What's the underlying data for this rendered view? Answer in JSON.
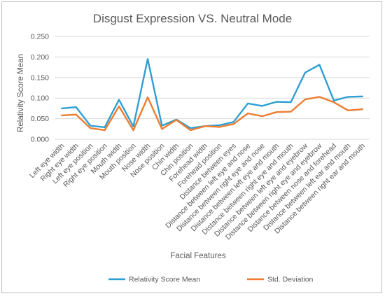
{
  "chart_data": {
    "type": "line",
    "title": "Disgust Expression VS. Neutral Mode",
    "xlabel": "Facial Features",
    "ylabel": "Relativity Score Mean",
    "ylim": [
      0,
      0.25
    ],
    "yticks": [
      "0.000",
      "0.050",
      "0.100",
      "0.150",
      "0.200",
      "0.250"
    ],
    "grid": true,
    "legend_position": "bottom",
    "categories": [
      "Left eye width",
      "Right eye width",
      "Left eye position",
      "Right eye position",
      "Mouth width",
      "Mouth position",
      "Nose width",
      "Nose position",
      "Chin width",
      "Chin position",
      "Forehead width",
      "Forehead position",
      "Distance between eyes",
      "Distance between left eye and nose",
      "Distance between right eye and nose",
      "Distance between left eye and mouth",
      "Distance between right eye and mouth",
      "Distance between left eye and eyebrow",
      "Distance between right eye and eyebrow",
      "Distance between nose and forehead",
      "Distance between left ear and mouth",
      "Distance between right ear and mouth"
    ],
    "series": [
      {
        "name": "Relativity Score Mean",
        "color": "#2e9fd2",
        "values": [
          0.075,
          0.078,
          0.033,
          0.029,
          0.096,
          0.031,
          0.195,
          0.033,
          0.048,
          0.027,
          0.032,
          0.034,
          0.042,
          0.087,
          0.081,
          0.091,
          0.09,
          0.162,
          0.181,
          0.094,
          0.103,
          0.104
        ]
      },
      {
        "name": "Std. Deviation",
        "color": "#ed7d31",
        "values": [
          0.058,
          0.06,
          0.027,
          0.022,
          0.08,
          0.022,
          0.102,
          0.025,
          0.047,
          0.022,
          0.032,
          0.03,
          0.037,
          0.063,
          0.056,
          0.066,
          0.067,
          0.097,
          0.103,
          0.09,
          0.07,
          0.073
        ]
      }
    ]
  }
}
